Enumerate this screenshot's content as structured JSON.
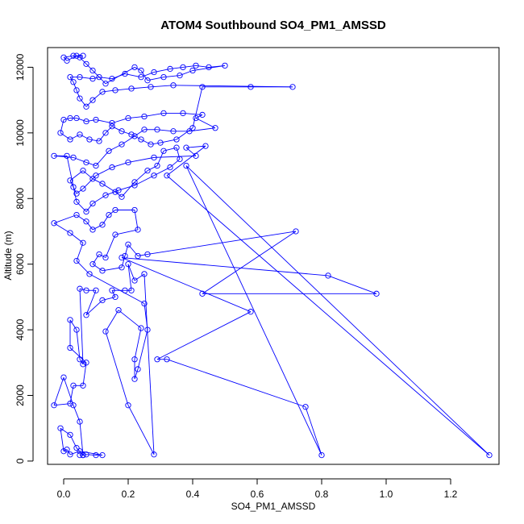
{
  "chart_data": {
    "type": "line",
    "title": "ATOM4 Southbound SO4_PM1_AMSSD",
    "xlabel": "SO4_PM1_AMSSD",
    "ylabel": "Altitude (m)",
    "xlim": [
      -0.05,
      1.35
    ],
    "ylim": [
      -100,
      12600
    ],
    "xticks": [
      0.0,
      0.2,
      0.4,
      0.6,
      0.8,
      1.0,
      1.2
    ],
    "xtick_labels": [
      "0.0",
      "0.2",
      "0.4",
      "0.6",
      "0.8",
      "1.0",
      "1.2"
    ],
    "yticks": [
      0,
      2000,
      4000,
      6000,
      8000,
      10000,
      12000
    ],
    "ytick_labels": [
      "0",
      "2000",
      "4000",
      "6000",
      "8000",
      "10000",
      "12000"
    ],
    "grid": false,
    "series_color": "#0000ff",
    "series": [
      {
        "style": "lines+open-circles",
        "points": [
          [
            0.05,
            180
          ],
          [
            0.06,
            180
          ],
          [
            0.07,
            200
          ],
          [
            0.1,
            180
          ],
          [
            0.12,
            180
          ],
          [
            0.05,
            300
          ],
          [
            0.02,
            200
          ],
          [
            0.01,
            350
          ],
          [
            0.0,
            300
          ],
          [
            -0.01,
            1000
          ],
          [
            0.02,
            800
          ],
          [
            0.04,
            400
          ],
          [
            0.06,
            180
          ],
          [
            0.05,
            1200
          ],
          [
            0.03,
            1700
          ],
          [
            0.0,
            2550
          ],
          [
            -0.03,
            1700
          ],
          [
            0.02,
            1750
          ],
          [
            0.03,
            2300
          ],
          [
            0.06,
            2300
          ],
          [
            0.07,
            3000
          ],
          [
            0.02,
            3450
          ],
          [
            0.02,
            4300
          ],
          [
            0.04,
            4000
          ],
          [
            0.05,
            3100
          ],
          [
            0.06,
            2950
          ],
          [
            0.05,
            5250
          ],
          [
            0.07,
            5200
          ],
          [
            0.1,
            5200
          ],
          [
            0.07,
            4450
          ],
          [
            0.12,
            4900
          ],
          [
            0.16,
            5000
          ],
          [
            0.15,
            5200
          ],
          [
            0.19,
            5200
          ],
          [
            0.21,
            5200
          ],
          [
            0.2,
            6000
          ],
          [
            0.22,
            5500
          ],
          [
            0.25,
            5700
          ],
          [
            0.28,
            200
          ],
          [
            0.2,
            1700
          ],
          [
            0.13,
            3950
          ],
          [
            0.17,
            4600
          ],
          [
            0.24,
            4050
          ],
          [
            0.22,
            3100
          ],
          [
            0.22,
            2500
          ],
          [
            0.23,
            2800
          ],
          [
            0.26,
            4000
          ],
          [
            0.25,
            4800
          ],
          [
            0.08,
            5700
          ],
          [
            0.04,
            6100
          ],
          [
            0.06,
            6650
          ],
          [
            0.02,
            6950
          ],
          [
            -0.03,
            7250
          ],
          [
            0.04,
            7500
          ],
          [
            0.07,
            7300
          ],
          [
            0.09,
            7050
          ],
          [
            0.12,
            7200
          ],
          [
            0.14,
            7500
          ],
          [
            0.16,
            7650
          ],
          [
            0.22,
            7650
          ],
          [
            0.23,
            7050
          ],
          [
            0.16,
            6900
          ],
          [
            0.13,
            6200
          ],
          [
            0.11,
            6300
          ],
          [
            0.09,
            6000
          ],
          [
            0.12,
            5800
          ],
          [
            0.18,
            5900
          ],
          [
            0.19,
            6250
          ],
          [
            0.2,
            6600
          ],
          [
            0.23,
            6250
          ],
          [
            0.26,
            6300
          ],
          [
            0.72,
            7000
          ],
          [
            0.43,
            5100
          ],
          [
            0.97,
            5100
          ],
          [
            0.82,
            5650
          ],
          [
            0.18,
            6200
          ],
          [
            0.58,
            4550
          ],
          [
            0.29,
            3100
          ],
          [
            0.32,
            3100
          ],
          [
            0.75,
            1650
          ],
          [
            0.8,
            180
          ],
          [
            0.38,
            9000
          ],
          [
            1.32,
            180
          ],
          [
            0.32,
            8700
          ],
          [
            0.44,
            9600
          ],
          [
            0.38,
            9550
          ],
          [
            0.41,
            9300
          ],
          [
            0.28,
            9250
          ],
          [
            0.2,
            9100
          ],
          [
            0.15,
            8950
          ],
          [
            0.1,
            8700
          ],
          [
            0.06,
            8300
          ],
          [
            0.04,
            8150
          ],
          [
            0.03,
            8350
          ],
          [
            0.02,
            8550
          ],
          [
            0.06,
            8850
          ],
          [
            0.09,
            8600
          ],
          [
            0.12,
            8450
          ],
          [
            0.16,
            8200
          ],
          [
            0.18,
            8050
          ],
          [
            0.22,
            8500
          ],
          [
            0.26,
            8850
          ],
          [
            0.29,
            9000
          ],
          [
            0.31,
            9450
          ],
          [
            0.35,
            9550
          ],
          [
            0.36,
            9200
          ],
          [
            0.33,
            8950
          ],
          [
            0.28,
            8700
          ],
          [
            0.22,
            8400
          ],
          [
            0.17,
            8250
          ],
          [
            0.13,
            8100
          ],
          [
            0.09,
            7850
          ],
          [
            0.07,
            7600
          ],
          [
            0.04,
            7900
          ],
          [
            0.01,
            9300
          ],
          [
            -0.03,
            9300
          ],
          [
            0.03,
            9250
          ],
          [
            0.07,
            9100
          ],
          [
            0.1,
            9000
          ],
          [
            0.14,
            9450
          ],
          [
            0.18,
            9650
          ],
          [
            0.22,
            9900
          ],
          [
            0.25,
            10100
          ],
          [
            0.29,
            10100
          ],
          [
            0.34,
            10050
          ],
          [
            0.39,
            10050
          ],
          [
            0.47,
            10150
          ],
          [
            0.41,
            10450
          ],
          [
            0.43,
            10550
          ],
          [
            0.37,
            10600
          ],
          [
            0.31,
            10600
          ],
          [
            0.25,
            10500
          ],
          [
            0.2,
            10450
          ],
          [
            0.15,
            10300
          ],
          [
            0.1,
            10400
          ],
          [
            0.07,
            10350
          ],
          [
            0.04,
            10450
          ],
          [
            0.02,
            10450
          ],
          [
            0.0,
            10400
          ],
          [
            -0.01,
            10000
          ],
          [
            0.02,
            9800
          ],
          [
            0.05,
            9950
          ],
          [
            0.08,
            9800
          ],
          [
            0.11,
            9750
          ],
          [
            0.13,
            10000
          ],
          [
            0.15,
            10200
          ],
          [
            0.18,
            10050
          ],
          [
            0.21,
            9950
          ],
          [
            0.24,
            9800
          ],
          [
            0.27,
            9650
          ],
          [
            0.3,
            9700
          ],
          [
            0.35,
            9800
          ],
          [
            0.4,
            10150
          ],
          [
            0.43,
            11400
          ],
          [
            0.58,
            11400
          ],
          [
            0.71,
            11400
          ],
          [
            0.34,
            11450
          ],
          [
            0.27,
            11400
          ],
          [
            0.21,
            11350
          ],
          [
            0.16,
            11300
          ],
          [
            0.12,
            11250
          ],
          [
            0.09,
            11000
          ],
          [
            0.07,
            10800
          ],
          [
            0.05,
            11050
          ],
          [
            0.04,
            11300
          ],
          [
            0.03,
            11550
          ],
          [
            0.02,
            11700
          ],
          [
            0.05,
            11700
          ],
          [
            0.09,
            11650
          ],
          [
            0.11,
            11700
          ],
          [
            0.15,
            11650
          ],
          [
            0.19,
            11800
          ],
          [
            0.24,
            11700
          ],
          [
            0.28,
            11850
          ],
          [
            0.33,
            11950
          ],
          [
            0.37,
            12000
          ],
          [
            0.41,
            12050
          ],
          [
            0.45,
            12000
          ],
          [
            0.5,
            12050
          ],
          [
            0.4,
            11900
          ],
          [
            0.36,
            11750
          ],
          [
            0.31,
            11700
          ],
          [
            0.26,
            11600
          ],
          [
            0.24,
            11900
          ],
          [
            0.22,
            12000
          ],
          [
            0.13,
            11500
          ],
          [
            0.09,
            11900
          ],
          [
            0.07,
            12100
          ],
          [
            0.05,
            12300
          ],
          [
            0.04,
            12350
          ],
          [
            0.01,
            12200
          ],
          [
            0.0,
            12300
          ],
          [
            0.03,
            12350
          ],
          [
            0.06,
            12350
          ]
        ]
      }
    ]
  }
}
